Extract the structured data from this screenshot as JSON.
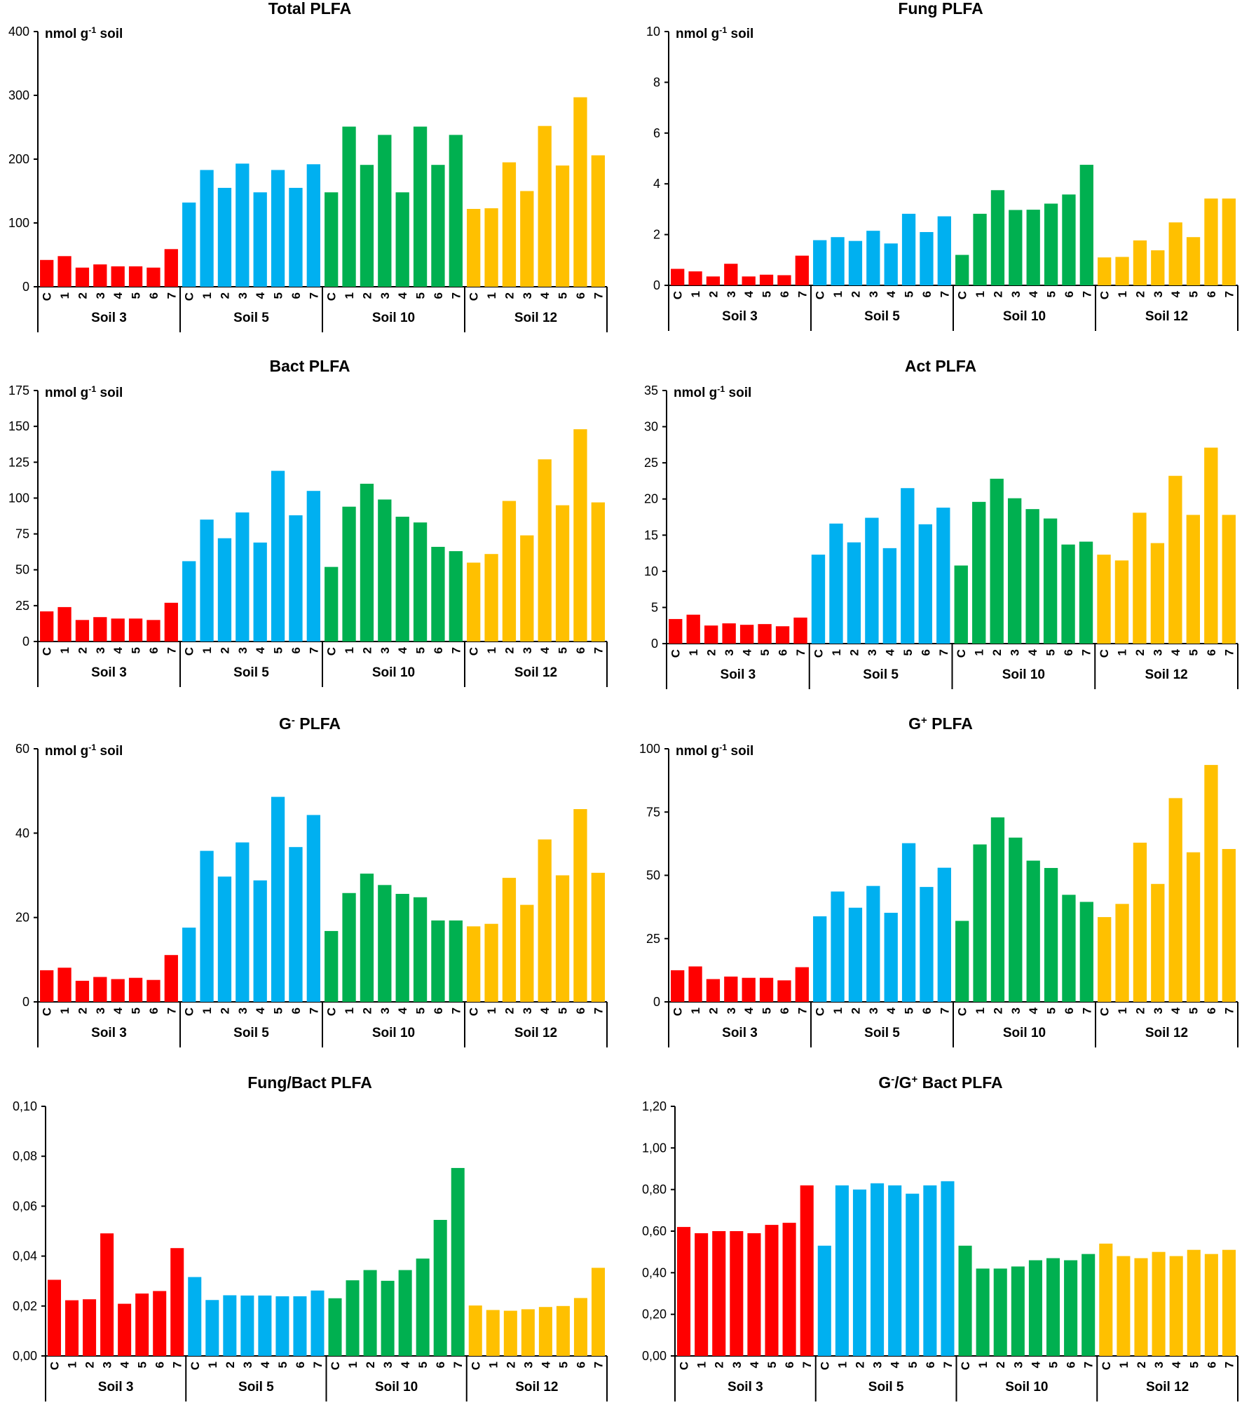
{
  "palette": {
    "Soil 3": "#ff0000",
    "Soil 5": "#00b0f0",
    "Soil 10": "#00b050",
    "Soil 12": "#ffc000"
  },
  "chart_data": [
    {
      "type": "bar",
      "title": "Total PLFA",
      "unit_label": {
        "pre": "nmol g",
        "sup": "-1",
        "post": " soil"
      },
      "ylim": [
        0,
        400
      ],
      "yticks": [
        "0",
        "100",
        "200",
        "300",
        "400"
      ],
      "groups": [
        "Soil 3",
        "Soil 5",
        "Soil 10",
        "Soil 12"
      ],
      "categories": [
        "C",
        "1",
        "2",
        "3",
        "4",
        "5",
        "6",
        "7"
      ],
      "series": [
        {
          "group": "Soil 3",
          "values": [
            42,
            48,
            30,
            35,
            32,
            32,
            30,
            59
          ]
        },
        {
          "group": "Soil 5",
          "values": [
            132,
            183,
            155,
            193,
            148,
            183,
            155,
            192
          ]
        },
        {
          "group": "Soil 10",
          "values": [
            148,
            251,
            191,
            238,
            148,
            251,
            191,
            238
          ]
        },
        {
          "group": "Soil 12",
          "values": [
            122,
            123,
            195,
            150,
            252,
            190,
            297,
            206
          ]
        }
      ]
    },
    {
      "type": "bar",
      "title": "Fung PLFA",
      "unit_label": {
        "pre": "nmol g",
        "sup": "-1",
        "post": " soil"
      },
      "ylim": [
        0,
        10
      ],
      "yticks": [
        "0",
        "2",
        "4",
        "6",
        "8",
        "10"
      ],
      "groups": [
        "Soil 3",
        "Soil 5",
        "Soil 10",
        "Soil 12"
      ],
      "categories": [
        "C",
        "1",
        "2",
        "3",
        "4",
        "5",
        "6",
        "7"
      ],
      "series": [
        {
          "group": "Soil 3",
          "values": [
            0.65,
            0.55,
            0.35,
            0.85,
            0.35,
            0.42,
            0.4,
            1.17
          ]
        },
        {
          "group": "Soil 5",
          "values": [
            1.78,
            1.9,
            1.75,
            2.15,
            1.65,
            2.82,
            2.1,
            2.72
          ]
        },
        {
          "group": "Soil 10",
          "values": [
            1.2,
            2.82,
            3.75,
            2.97,
            2.98,
            3.22,
            3.58,
            4.75
          ]
        },
        {
          "group": "Soil 12",
          "values": [
            1.1,
            1.12,
            1.77,
            1.38,
            2.48,
            1.9,
            3.42,
            3.42
          ]
        }
      ]
    },
    {
      "type": "bar",
      "title": "Bact PLFA",
      "unit_label": {
        "pre": "nmol g",
        "sup": "-1",
        "post": " soil"
      },
      "ylim": [
        0,
        175
      ],
      "yticks": [
        "0",
        "25",
        "50",
        "75",
        "100",
        "125",
        "150",
        "175"
      ],
      "groups": [
        "Soil 3",
        "Soil 5",
        "Soil 10",
        "Soil 12"
      ],
      "categories": [
        "C",
        "1",
        "2",
        "3",
        "4",
        "5",
        "6",
        "7"
      ],
      "series": [
        {
          "group": "Soil 3",
          "values": [
            21,
            24,
            15,
            17,
            16,
            16,
            15,
            27
          ]
        },
        {
          "group": "Soil 5",
          "values": [
            56,
            85,
            72,
            90,
            69,
            119,
            88,
            105
          ]
        },
        {
          "group": "Soil 10",
          "values": [
            52,
            94,
            110,
            99,
            87,
            83,
            66,
            63
          ]
        },
        {
          "group": "Soil 12",
          "values": [
            55,
            61,
            98,
            74,
            127,
            95,
            148,
            97
          ]
        }
      ]
    },
    {
      "type": "bar",
      "title": "Act PLFA",
      "unit_label": {
        "pre": "nmol g",
        "sup": "-1",
        "post": " soil"
      },
      "ylim": [
        0,
        35
      ],
      "yticks": [
        "0",
        "5",
        "10",
        "15",
        "20",
        "25",
        "30",
        "35"
      ],
      "groups": [
        "Soil 3",
        "Soil 5",
        "Soil 10",
        "Soil 12"
      ],
      "categories": [
        "C",
        "1",
        "2",
        "3",
        "4",
        "5",
        "6",
        "7"
      ],
      "series": [
        {
          "group": "Soil 3",
          "values": [
            3.4,
            4.0,
            2.5,
            2.8,
            2.6,
            2.7,
            2.4,
            3.6
          ]
        },
        {
          "group": "Soil 5",
          "values": [
            12.3,
            16.6,
            14.0,
            17.4,
            13.2,
            21.5,
            16.5,
            18.8
          ]
        },
        {
          "group": "Soil 10",
          "values": [
            10.8,
            19.6,
            22.8,
            20.1,
            18.6,
            17.3,
            13.7,
            14.1
          ]
        },
        {
          "group": "Soil 12",
          "values": [
            12.3,
            11.5,
            18.1,
            13.9,
            23.2,
            17.8,
            27.1,
            17.8
          ]
        }
      ]
    },
    {
      "type": "bar",
      "title": "G- PLFA",
      "title_parts": {
        "pre": "G",
        "sup": "-",
        "post": " PLFA"
      },
      "unit_label": {
        "pre": "nmol g",
        "sup": "-1",
        "post": " soil"
      },
      "ylim": [
        0,
        60
      ],
      "yticks": [
        "0",
        "20",
        "40",
        "60"
      ],
      "groups": [
        "Soil 3",
        "Soil 5",
        "Soil 10",
        "Soil 12"
      ],
      "categories": [
        "C",
        "1",
        "2",
        "3",
        "4",
        "5",
        "6",
        "7"
      ],
      "series": [
        {
          "group": "Soil 3",
          "values": [
            7.5,
            8.1,
            5.0,
            5.9,
            5.4,
            5.7,
            5.2,
            11.1
          ]
        },
        {
          "group": "Soil 5",
          "values": [
            17.6,
            35.8,
            29.7,
            37.8,
            28.8,
            48.6,
            36.7,
            44.3
          ]
        },
        {
          "group": "Soil 10",
          "values": [
            16.8,
            25.8,
            30.4,
            27.7,
            25.6,
            24.8,
            19.3,
            19.3
          ]
        },
        {
          "group": "Soil 12",
          "values": [
            17.9,
            18.5,
            29.4,
            23.0,
            38.5,
            30.0,
            45.7,
            30.6
          ]
        }
      ]
    },
    {
      "type": "bar",
      "title": "G+ PLFA",
      "title_parts": {
        "pre": "G",
        "sup": "+",
        "post": " PLFA"
      },
      "unit_label": {
        "pre": "nmol g",
        "sup": "-1",
        "post": " soil"
      },
      "ylim": [
        0,
        100
      ],
      "yticks": [
        "0",
        "25",
        "50",
        "75",
        "100"
      ],
      "groups": [
        "Soil 3",
        "Soil 5",
        "Soil 10",
        "Soil 12"
      ],
      "categories": [
        "C",
        "1",
        "2",
        "3",
        "4",
        "5",
        "6",
        "7"
      ],
      "series": [
        {
          "group": "Soil 3",
          "values": [
            12.5,
            14,
            9,
            10,
            9.5,
            9.5,
            8.5,
            13.7
          ]
        },
        {
          "group": "Soil 5",
          "values": [
            33.8,
            43.6,
            37.2,
            45.8,
            35.2,
            62.7,
            45.4,
            53
          ]
        },
        {
          "group": "Soil 10",
          "values": [
            32,
            62.2,
            72.9,
            64.9,
            55.8,
            52.9,
            42.3,
            39.5
          ]
        },
        {
          "group": "Soil 12",
          "values": [
            33.5,
            38.7,
            62.9,
            46.6,
            80.5,
            59.1,
            93.6,
            60.4
          ]
        }
      ]
    },
    {
      "type": "bar",
      "title": "Fung/Bact PLFA",
      "ylim": [
        0,
        0.1
      ],
      "yticks": [
        "0,00",
        "0,02",
        "0,04",
        "0,06",
        "0,08",
        "0,10"
      ],
      "groups": [
        "Soil 3",
        "Soil 5",
        "Soil 10",
        "Soil 12"
      ],
      "categories": [
        "C",
        "1",
        "2",
        "3",
        "4",
        "5",
        "6",
        "7"
      ],
      "series": [
        {
          "group": "Soil 3",
          "values": [
            0.0305,
            0.0223,
            0.0227,
            0.0491,
            0.0209,
            0.025,
            0.026,
            0.0432
          ]
        },
        {
          "group": "Soil 5",
          "values": [
            0.0316,
            0.0224,
            0.0243,
            0.0242,
            0.0242,
            0.0239,
            0.0239,
            0.0262
          ]
        },
        {
          "group": "Soil 10",
          "values": [
            0.0231,
            0.0303,
            0.0344,
            0.0301,
            0.0344,
            0.039,
            0.0545,
            0.0753
          ]
        },
        {
          "group": "Soil 12",
          "values": [
            0.0202,
            0.0184,
            0.0181,
            0.0187,
            0.0196,
            0.02,
            0.0232,
            0.0353
          ]
        }
      ]
    },
    {
      "type": "bar",
      "title": "G-/G+ Bact PLFA",
      "title_parts": {
        "pre": "G",
        "sup": "-",
        "mid": "/G",
        "sup2": "+",
        "post": " Bact PLFA"
      },
      "ylim": [
        0,
        1.2
      ],
      "yticks": [
        "0,00",
        "0,20",
        "0,40",
        "0,60",
        "0,80",
        "1,00",
        "1,20"
      ],
      "groups": [
        "Soil 3",
        "Soil 5",
        "Soil 10",
        "Soil 12"
      ],
      "categories": [
        "C",
        "1",
        "2",
        "3",
        "4",
        "5",
        "6",
        "7"
      ],
      "series": [
        {
          "group": "Soil 3",
          "values": [
            0.62,
            0.59,
            0.6,
            0.6,
            0.59,
            0.63,
            0.64,
            0.82
          ]
        },
        {
          "group": "Soil 5",
          "values": [
            0.53,
            0.82,
            0.8,
            0.83,
            0.82,
            0.78,
            0.82,
            0.84
          ]
        },
        {
          "group": "Soil 10",
          "values": [
            0.53,
            0.42,
            0.42,
            0.43,
            0.46,
            0.47,
            0.46,
            0.49
          ]
        },
        {
          "group": "Soil 12",
          "values": [
            0.54,
            0.48,
            0.47,
            0.5,
            0.48,
            0.51,
            0.49,
            0.51
          ]
        }
      ]
    }
  ]
}
